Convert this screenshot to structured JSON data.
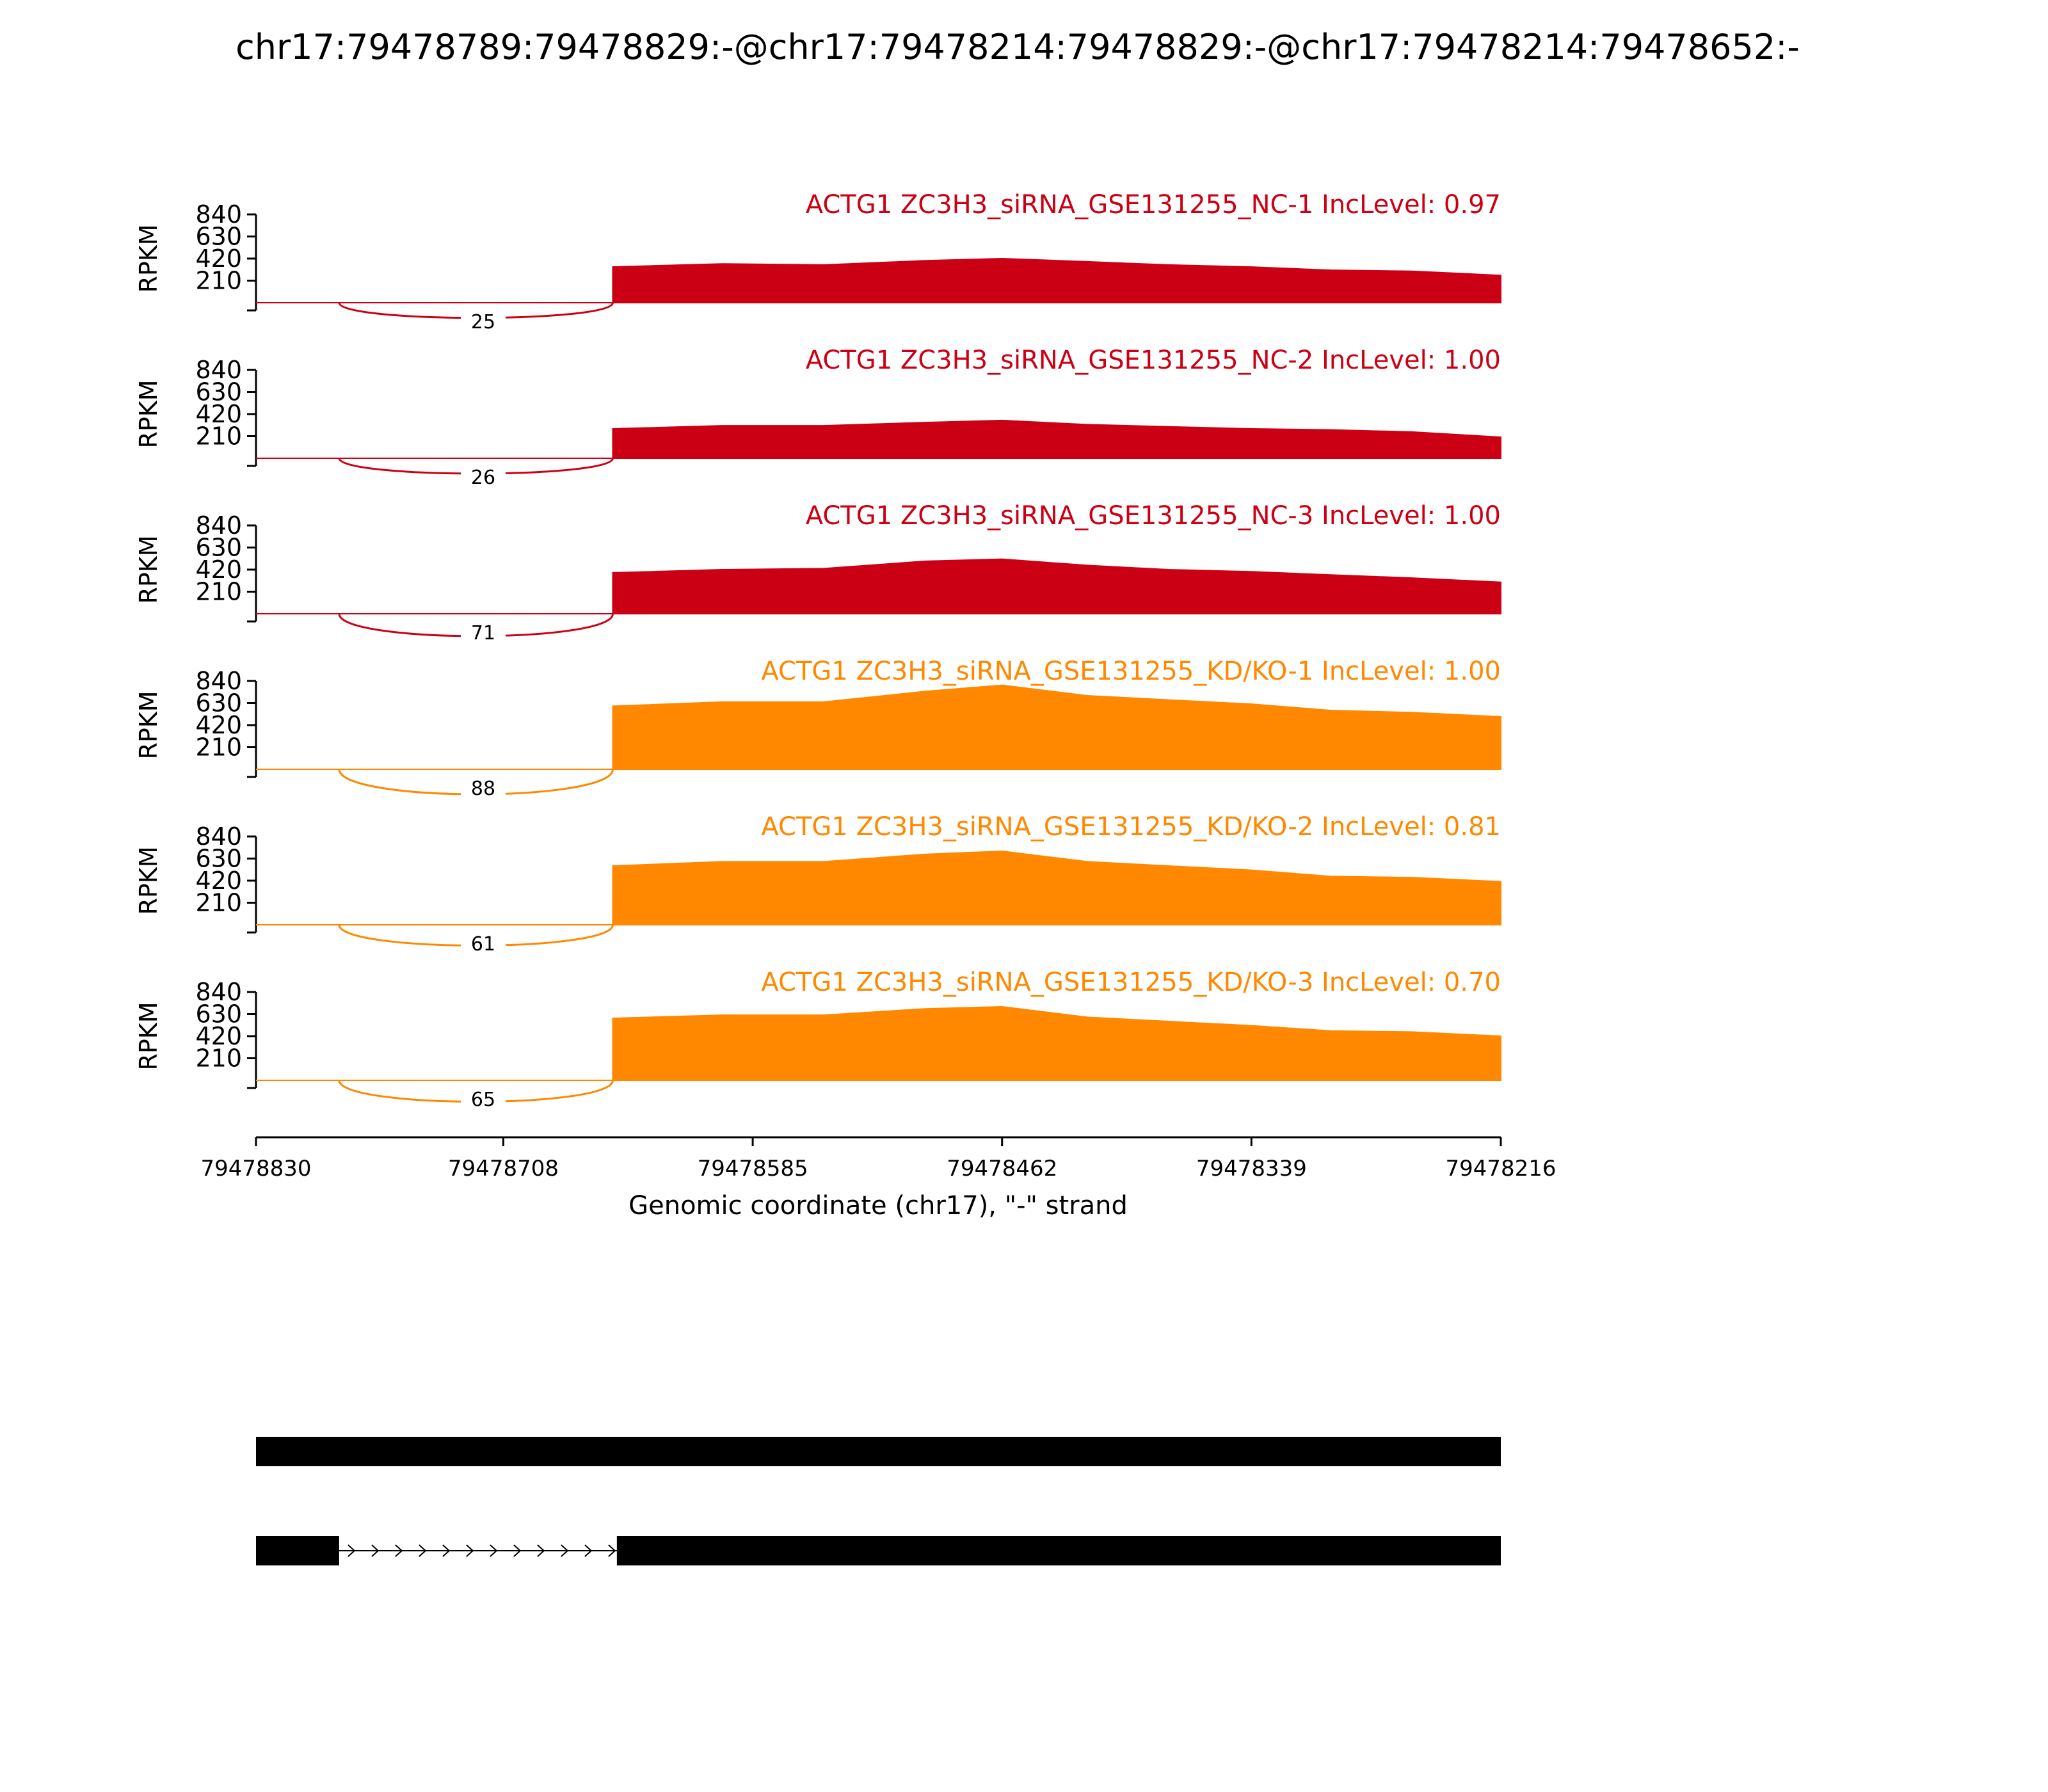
{
  "title": "chr17:79478789:79478829:-@chr17:79478214:79478829:-@chr17:79478214:79478652:-",
  "chart_data": {
    "type": "area",
    "title": "chr17:79478789:79478829:-@chr17:79478214:79478829:-@chr17:79478214:79478652:-",
    "ylabel": "RPKM",
    "xlabel": "Genomic coordinate (chr17), \"-\" strand",
    "x_ticks": [
      "79478830",
      "79478708",
      "79478585",
      "79478462",
      "79478339",
      "79478216"
    ],
    "y_ticks": [
      "840",
      "630",
      "420",
      "210"
    ],
    "ylim": [
      0,
      840
    ],
    "xlim": [
      79478830,
      79478216
    ],
    "exon_start": 79478654,
    "x": [
      79478654,
      79478600,
      79478550,
      79478500,
      79478462,
      79478420,
      79478380,
      79478339,
      79478300,
      79478260,
      79478216
    ],
    "series": [
      {
        "name": "ACTG1 ZC3H3_siRNA_GSE131255_NC-1 IncLevel: 0.97",
        "color": "#cc0014",
        "junction_count": "25",
        "values": [
          340,
          370,
          360,
          400,
          420,
          390,
          360,
          340,
          310,
          300,
          260
        ]
      },
      {
        "name": "ACTG1 ZC3H3_siRNA_GSE131255_NC-2 IncLevel: 1.00",
        "color": "#cc0014",
        "junction_count": "26",
        "values": [
          280,
          310,
          310,
          340,
          360,
          320,
          300,
          280,
          270,
          250,
          200
        ]
      },
      {
        "name": "ACTG1 ZC3H3_siRNA_GSE131255_NC-3 IncLevel: 1.00",
        "color": "#cc0014",
        "junction_count": "71",
        "values": [
          390,
          420,
          430,
          500,
          520,
          460,
          420,
          400,
          370,
          340,
          300
        ]
      },
      {
        "name": "ACTG1 ZC3H3_siRNA_GSE131255_KD/KO-1 IncLevel: 1.00",
        "color": "#ff8800",
        "junction_count": "88",
        "values": [
          600,
          640,
          640,
          740,
          800,
          700,
          660,
          620,
          560,
          540,
          500
        ]
      },
      {
        "name": "ACTG1 ZC3H3_siRNA_GSE131255_KD/KO-2 IncLevel: 0.81",
        "color": "#ff8800",
        "junction_count": "61",
        "values": [
          560,
          600,
          600,
          670,
          700,
          600,
          560,
          520,
          460,
          450,
          410
        ]
      },
      {
        "name": "ACTG1 ZC3H3_siRNA_GSE131255_KD/KO-3 IncLevel: 0.70",
        "color": "#ff8800",
        "junction_count": "65",
        "values": [
          590,
          620,
          620,
          680,
          700,
          600,
          560,
          520,
          470,
          460,
          420
        ]
      }
    ],
    "gene_models": [
      {
        "exons": [
          [
            79478830,
            79478216
          ]
        ]
      },
      {
        "exons": [
          [
            79478830,
            79478789
          ],
          [
            79478652,
            79478216
          ]
        ],
        "intron": [
          79478789,
          79478652
        ]
      }
    ]
  }
}
